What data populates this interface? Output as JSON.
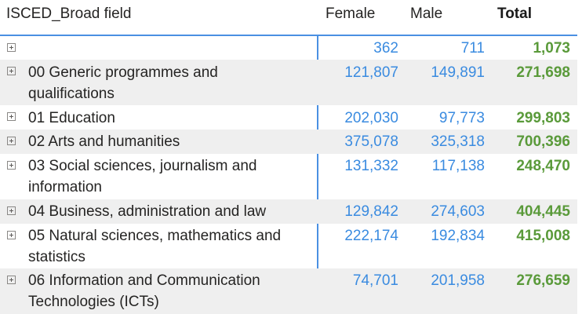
{
  "header": {
    "field": "ISCED_Broad field",
    "female": "Female",
    "male": "Male",
    "total": "Total"
  },
  "rows": [
    {
      "label": "",
      "female": "362",
      "male": "711",
      "total": "1,073"
    },
    {
      "label": "00 Generic programmes and qualifications",
      "female": "121,807",
      "male": "149,891",
      "total": "271,698"
    },
    {
      "label": "01 Education",
      "female": "202,030",
      "male": "97,773",
      "total": "299,803"
    },
    {
      "label": "02 Arts and humanities",
      "female": "375,078",
      "male": "325,318",
      "total": "700,396"
    },
    {
      "label": "03 Social sciences, journalism and information",
      "female": "131,332",
      "male": "117,138",
      "total": "248,470"
    },
    {
      "label": "04 Business, administration and law",
      "female": "129,842",
      "male": "274,603",
      "total": "404,445"
    },
    {
      "label": "05 Natural sciences, mathematics and statistics",
      "female": "222,174",
      "male": "192,834",
      "total": "415,008"
    },
    {
      "label": "06 Information and Communication Technologies (ICTs)",
      "female": "74,701",
      "male": "201,958",
      "total": "276,659"
    }
  ],
  "colors": {
    "accent": "#4a90e2",
    "value_blue": "#3a8be0",
    "total_green": "#5a9a3a",
    "row_shade": "#efefef"
  }
}
